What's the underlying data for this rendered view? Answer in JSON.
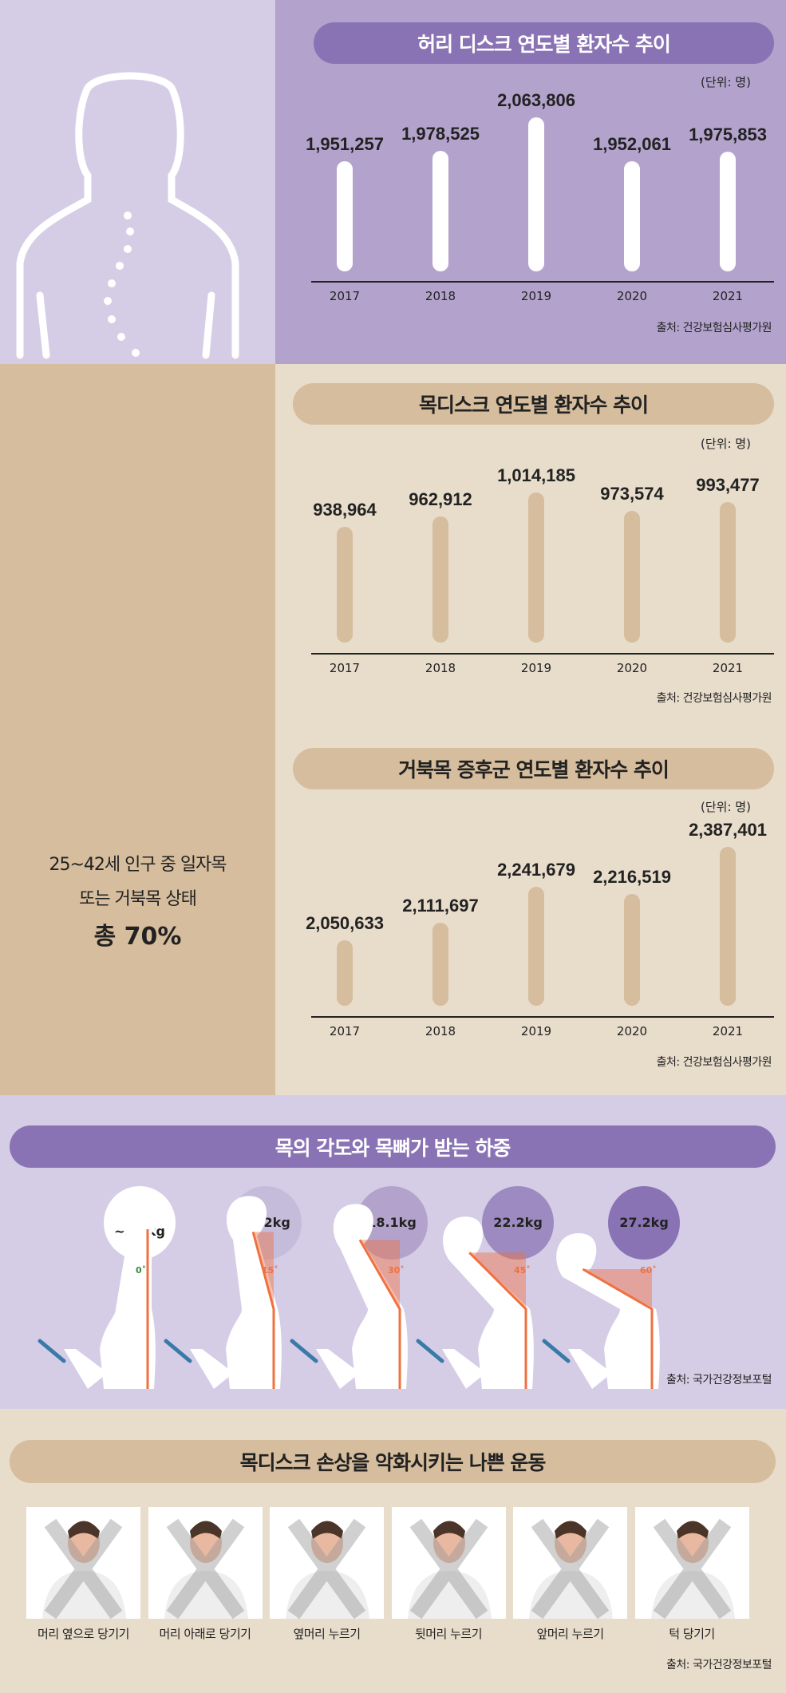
{
  "colors": {
    "purple_dark": "#8a73b4",
    "purple_mid": "#b3a3cc",
    "purple_light": "#d5cde6",
    "tan_dark": "#d6bd9d",
    "tan_light": "#e8dccb",
    "orange": "#f07040"
  },
  "unit_label": "(단위: 명)",
  "chart_data": [
    {
      "type": "bar",
      "title": "허리 디스크 연도별 환자수 추이",
      "categories": [
        "2017",
        "2018",
        "2019",
        "2020",
        "2021"
      ],
      "values": [
        1951257,
        1978525,
        2063806,
        1952061,
        1975853
      ],
      "value_labels": [
        "1,951,257",
        "1,978,525",
        "2,063,806",
        "1,952,061",
        "1,975,853"
      ],
      "ylabel": "명",
      "source": "출처: 건강보험심사평가원",
      "ylim": [
        1670000,
        2070000
      ]
    },
    {
      "type": "bar",
      "title": "목디스크 연도별 환자수 추이",
      "categories": [
        "2017",
        "2018",
        "2019",
        "2020",
        "2021"
      ],
      "values": [
        938964,
        962912,
        1014185,
        973574,
        993477
      ],
      "value_labels": [
        "938,964",
        "962,912",
        "1,014,185",
        "973,574",
        "993,477"
      ],
      "ylabel": "명",
      "source": "출처: 건강보험심사평가원",
      "ylim": [
        685000,
        1020000
      ]
    },
    {
      "type": "bar",
      "title": "거북목 증후군 연도별 환자수 추이",
      "categories": [
        "2017",
        "2018",
        "2019",
        "2020",
        "2021"
      ],
      "values": [
        2050633,
        2111697,
        2241679,
        2216519,
        2387401
      ],
      "value_labels": [
        "2,050,633",
        "2,111,697",
        "2,241,679",
        "2,216,519",
        "2,387,401"
      ],
      "ylabel": "명",
      "source": "출처: 건강보험심사평가원",
      "ylim": [
        1813000,
        2390000
      ]
    }
  ],
  "stat": {
    "line1": "25~42세 인구 중 일자목",
    "line2": "또는 거북목 상태",
    "line3": "총 70%"
  },
  "neck": {
    "title": "목의 각도와 목뼈가 받는 하중",
    "items": [
      {
        "load": "4.5\n~5.4kg",
        "angle": "0˚"
      },
      {
        "load": "12.2kg",
        "angle": "15˚"
      },
      {
        "load": "18.1kg",
        "angle": "30˚"
      },
      {
        "load": "22.2kg",
        "angle": "45˚"
      },
      {
        "load": "27.2kg",
        "angle": "60˚"
      }
    ],
    "source": "출처: 국가건강정보포털"
  },
  "exercise": {
    "title": "목디스크 손상을 악화시키는 나쁜 운동",
    "items": [
      "머리 옆으로 당기기",
      "머리 아래로 당기기",
      "옆머리 누르기",
      "뒷머리 누르기",
      "앞머리 누르기",
      "턱 당기기"
    ],
    "source": "출처: 국가건강정보포털"
  }
}
